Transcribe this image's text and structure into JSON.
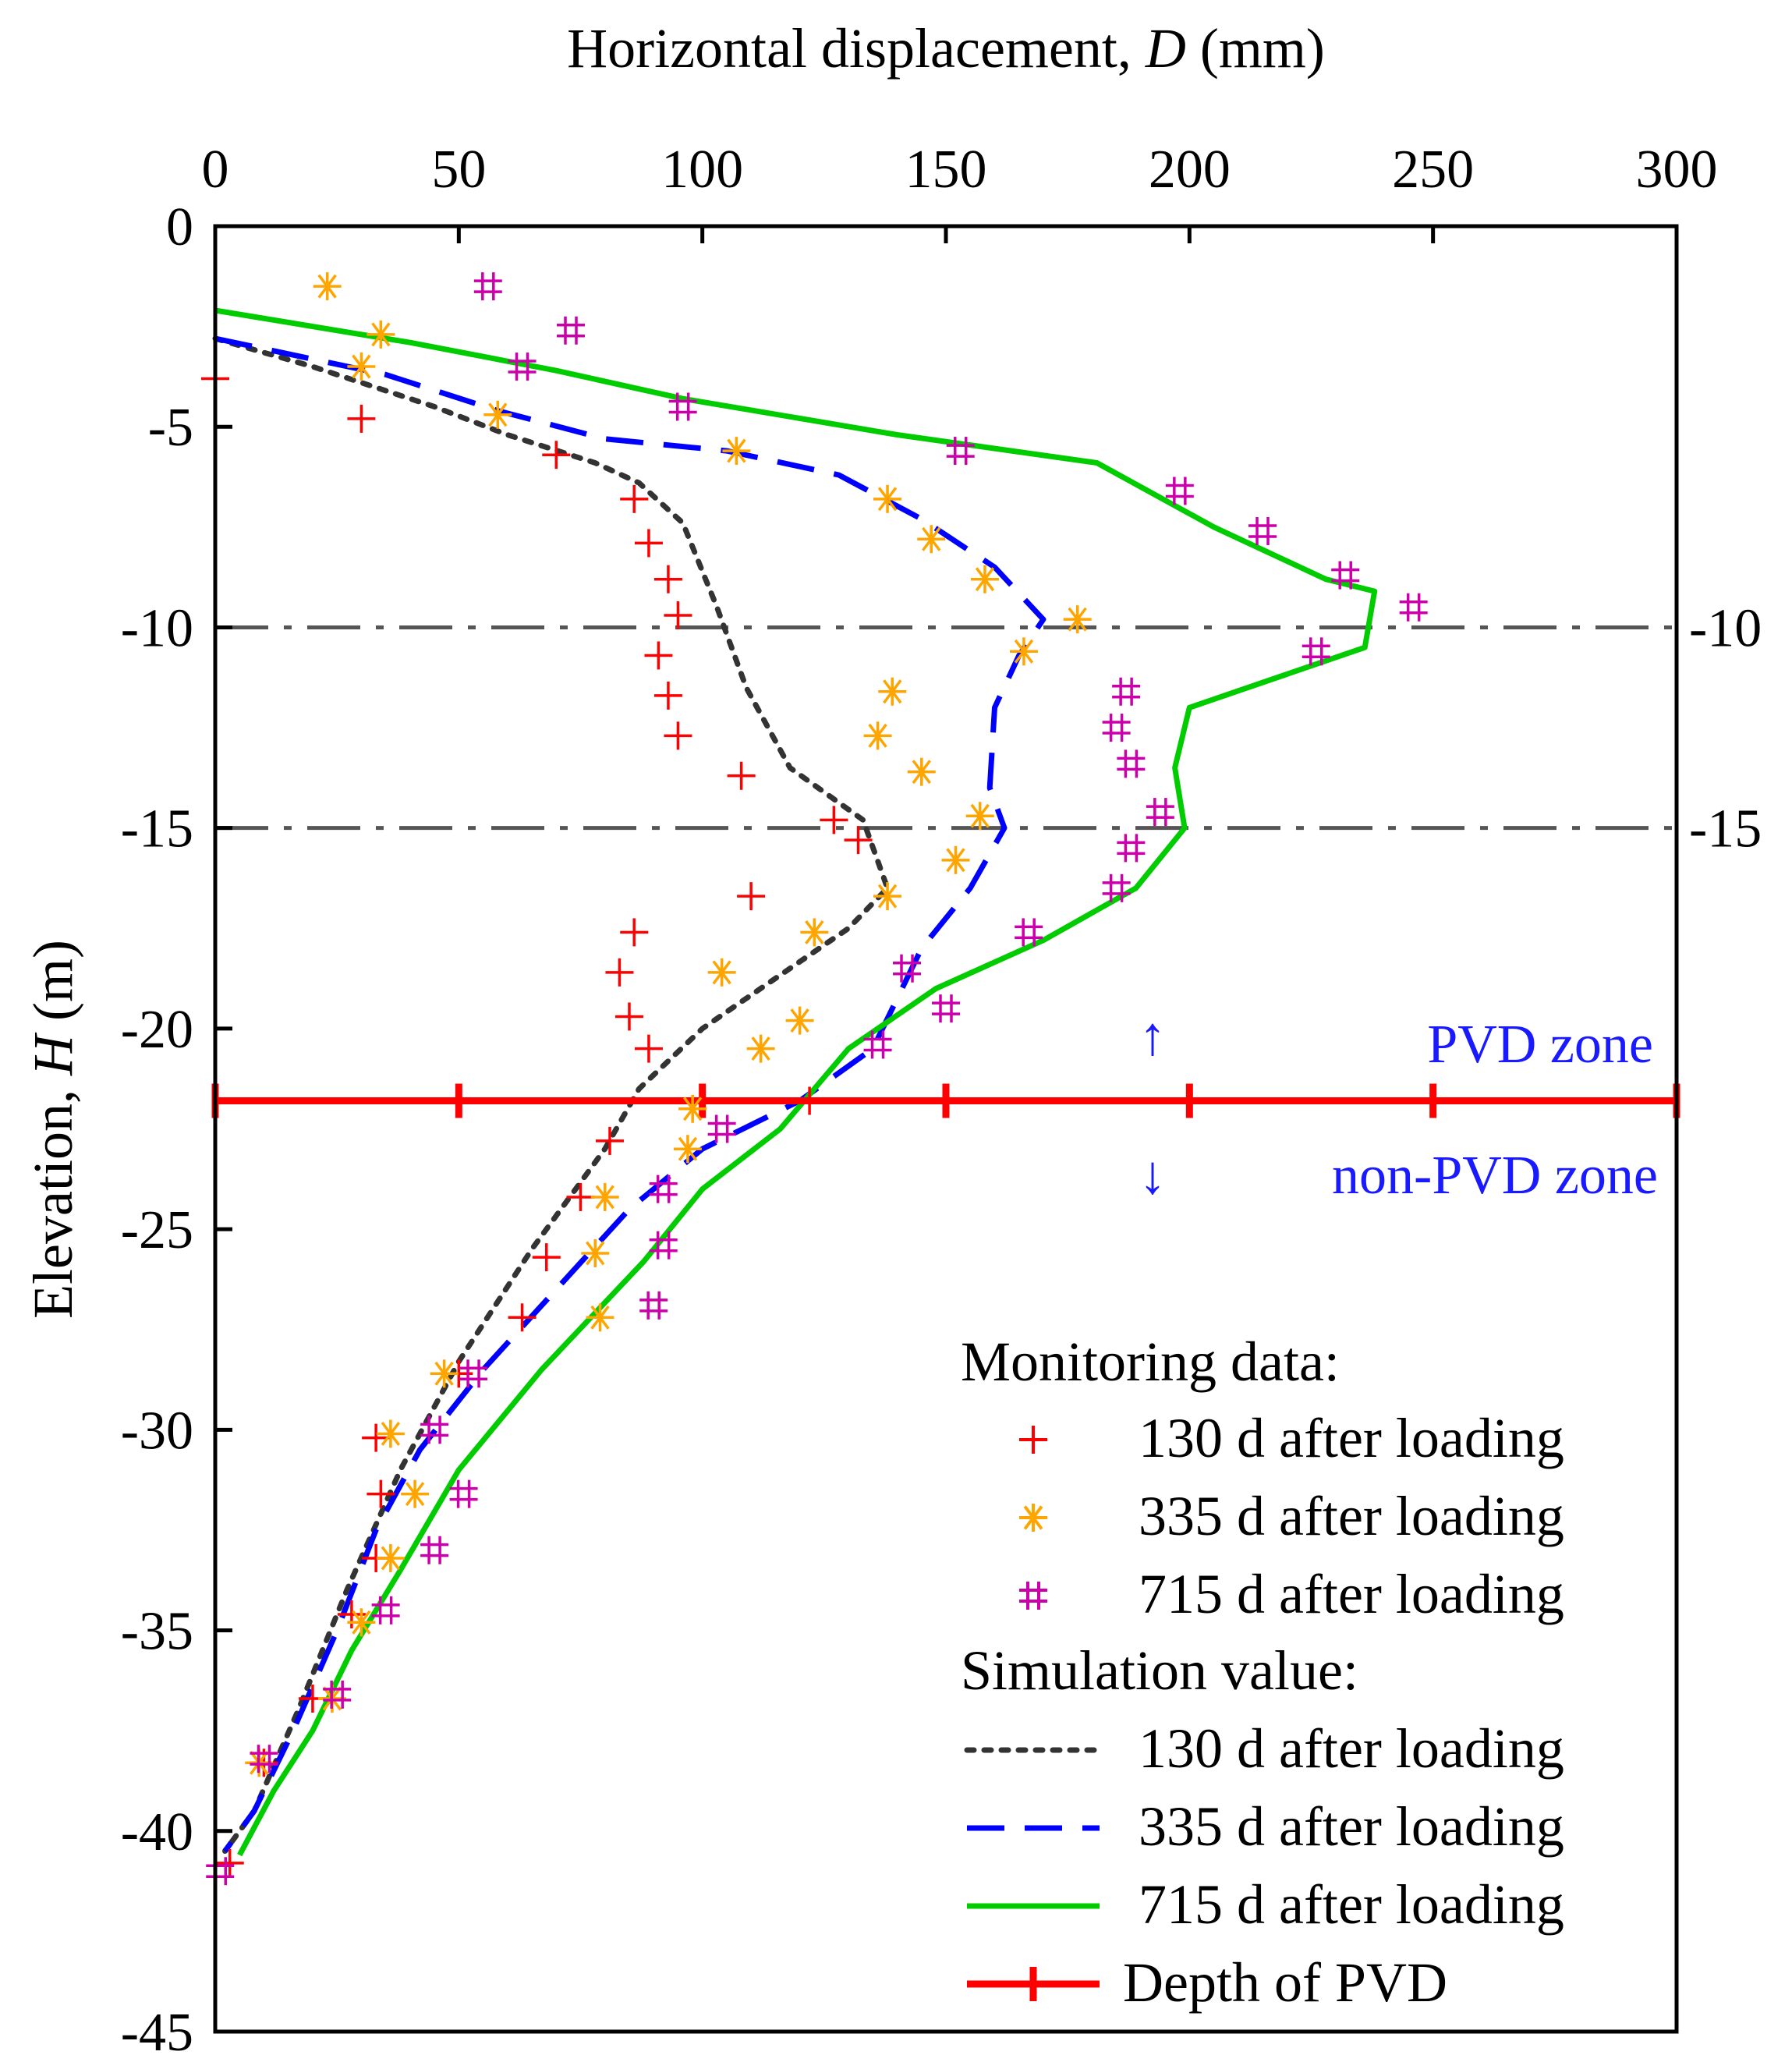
{
  "chart_data": {
    "type": "line",
    "title": "",
    "xlabel": "Horizontal displacement, D (mm)",
    "xlabel_parts": [
      "Horizontal displacement, ",
      "D",
      " (mm)"
    ],
    "ylabel": "Elevation, H (m)",
    "ylabel_parts": [
      "Elevation, ",
      "H",
      " (m)"
    ],
    "xlim": [
      0,
      300
    ],
    "ylim": [
      -45,
      0
    ],
    "x_axis_position": "top",
    "xticks": [
      0,
      50,
      100,
      150,
      200,
      250,
      300
    ],
    "xtick_labels": [
      "0",
      "50",
      "100",
      "150",
      "200",
      "250",
      "300"
    ],
    "yticks": [
      0,
      -5,
      -10,
      -15,
      -20,
      -25,
      -30,
      -35,
      -40,
      -45
    ],
    "ytick_labels": [
      "0",
      "-5",
      "-10",
      "-15",
      "-20",
      "-25",
      "-30",
      "-35",
      "-40",
      "-45"
    ],
    "reference_lines": [
      {
        "y": -10,
        "label": "-10",
        "style": "dash-dot",
        "color": "#555555"
      },
      {
        "y": -15,
        "label": "-15",
        "style": "dash-dot",
        "color": "#555555"
      }
    ],
    "pvd_depth": {
      "y": -21.8,
      "marker_x": [
        0,
        50,
        100,
        150,
        200,
        250,
        300
      ],
      "color": "#ff0000"
    },
    "zone_labels": {
      "upper": "PVD zone",
      "lower": "non-PVD zone",
      "upper_arrow": "↑",
      "lower_arrow": "↓"
    },
    "monitoring": [
      {
        "name": "130 d after loading",
        "marker": "+",
        "color": "#ff0000",
        "points": [
          [
            0,
            -3.8
          ],
          [
            30,
            -4.8
          ],
          [
            70,
            -5.7
          ],
          [
            86,
            -6.8
          ],
          [
            89,
            -7.9
          ],
          [
            93,
            -8.8
          ],
          [
            95,
            -9.7
          ],
          [
            91,
            -10.7
          ],
          [
            93,
            -11.7
          ],
          [
            95,
            -12.7
          ],
          [
            108,
            -13.7
          ],
          [
            127,
            -14.8
          ],
          [
            132,
            -15.3
          ],
          [
            110,
            -16.7
          ],
          [
            86,
            -17.6
          ],
          [
            83,
            -18.6
          ],
          [
            85,
            -19.7
          ],
          [
            89,
            -20.5
          ],
          [
            122,
            -21.8
          ],
          [
            81,
            -22.8
          ],
          [
            75,
            -24.2
          ],
          [
            68,
            -25.7
          ],
          [
            63,
            -27.2
          ],
          [
            50,
            -28.6
          ],
          [
            33,
            -30.2
          ],
          [
            34,
            -31.6
          ],
          [
            33,
            -33.2
          ],
          [
            28,
            -34.6
          ],
          [
            20,
            -36.7
          ],
          [
            10,
            -38.3
          ],
          [
            3,
            -40.8
          ]
        ]
      },
      {
        "name": "335 d after loading",
        "marker": "*",
        "color": "#ffa500",
        "points": [
          [
            23,
            -1.5
          ],
          [
            34,
            -2.7
          ],
          [
            30,
            -3.5
          ],
          [
            58,
            -4.7
          ],
          [
            107,
            -5.6
          ],
          [
            138,
            -6.8
          ],
          [
            147,
            -7.8
          ],
          [
            158,
            -8.8
          ],
          [
            177,
            -9.8
          ],
          [
            166,
            -10.6
          ],
          [
            139,
            -11.6
          ],
          [
            136,
            -12.7
          ],
          [
            145,
            -13.6
          ],
          [
            157,
            -14.7
          ],
          [
            152,
            -15.8
          ],
          [
            138,
            -16.7
          ],
          [
            123,
            -17.6
          ],
          [
            104,
            -18.6
          ],
          [
            120,
            -19.8
          ],
          [
            112,
            -20.5
          ],
          [
            98,
            -22
          ],
          [
            97,
            -23
          ],
          [
            80,
            -24.2
          ],
          [
            78,
            -25.6
          ],
          [
            79,
            -27.2
          ],
          [
            47,
            -28.6
          ],
          [
            36,
            -30.1
          ],
          [
            41,
            -31.6
          ],
          [
            36,
            -33.2
          ],
          [
            30,
            -34.8
          ],
          [
            24,
            -36.7
          ],
          [
            9,
            -38.3
          ]
        ]
      },
      {
        "name": "715 d after loading",
        "marker": "#",
        "color": "#cc00aa",
        "points": [
          [
            56,
            -1.5
          ],
          [
            73,
            -2.6
          ],
          [
            63,
            -3.5
          ],
          [
            96,
            -4.5
          ],
          [
            153,
            -5.6
          ],
          [
            198,
            -6.6
          ],
          [
            215,
            -7.6
          ],
          [
            232,
            -8.7
          ],
          [
            246,
            -9.5
          ],
          [
            226,
            -10.6
          ],
          [
            187,
            -11.6
          ],
          [
            185,
            -12.5
          ],
          [
            188,
            -13.4
          ],
          [
            194,
            -14.6
          ],
          [
            188,
            -15.5
          ],
          [
            185,
            -16.5
          ],
          [
            167,
            -17.6
          ],
          [
            142,
            -18.5
          ],
          [
            150,
            -19.5
          ],
          [
            136,
            -20.4
          ],
          [
            104,
            -22.5
          ],
          [
            92,
            -24
          ],
          [
            92,
            -25.4
          ],
          [
            90,
            -26.9
          ],
          [
            53,
            -28.6
          ],
          [
            45,
            -30
          ],
          [
            51,
            -31.6
          ],
          [
            45,
            -33
          ],
          [
            35,
            -34.5
          ],
          [
            25,
            -36.6
          ],
          [
            10,
            -38.2
          ],
          [
            1,
            -41
          ]
        ]
      }
    ],
    "simulation": [
      {
        "name": "130 d after loading",
        "style": "dotted",
        "color": "#333333",
        "points": [
          [
            0,
            -2.8
          ],
          [
            20,
            -3.5
          ],
          [
            45,
            -4.5
          ],
          [
            60,
            -5.2
          ],
          [
            78,
            -5.9
          ],
          [
            87,
            -6.4
          ],
          [
            96,
            -7.4
          ],
          [
            103,
            -9.5
          ],
          [
            109,
            -11.5
          ],
          [
            118,
            -13.5
          ],
          [
            133,
            -14.8
          ],
          [
            138,
            -16.5
          ],
          [
            130,
            -17.5
          ],
          [
            112,
            -19.0
          ],
          [
            100,
            -20.0
          ],
          [
            87,
            -21.5
          ],
          [
            80,
            -23.0
          ],
          [
            65,
            -25.5
          ],
          [
            50,
            -28.3
          ],
          [
            38,
            -31.0
          ],
          [
            27,
            -34.0
          ],
          [
            17,
            -37.0
          ],
          [
            8,
            -39.5
          ],
          [
            2,
            -40.5
          ]
        ]
      },
      {
        "name": "335 d after loading",
        "style": "dashed",
        "color": "#0000ff",
        "points": [
          [
            0,
            -2.8
          ],
          [
            35,
            -3.7
          ],
          [
            58,
            -4.6
          ],
          [
            80,
            -5.3
          ],
          [
            105,
            -5.6
          ],
          [
            128,
            -6.2
          ],
          [
            145,
            -7.3
          ],
          [
            160,
            -8.5
          ],
          [
            170,
            -9.8
          ],
          [
            165,
            -10.7
          ],
          [
            160,
            -12.0
          ],
          [
            159,
            -14.0
          ],
          [
            162,
            -15.0
          ],
          [
            155,
            -16.5
          ],
          [
            145,
            -18.0
          ],
          [
            135,
            -20.5
          ],
          [
            120,
            -21.8
          ],
          [
            100,
            -23.0
          ],
          [
            85,
            -24.5
          ],
          [
            70,
            -26.5
          ],
          [
            55,
            -28.5
          ],
          [
            42,
            -30.5
          ],
          [
            33,
            -32.5
          ],
          [
            25,
            -35.0
          ],
          [
            16,
            -37.5
          ],
          [
            8,
            -39.5
          ],
          [
            2,
            -40.5
          ]
        ]
      },
      {
        "name": "715 d after loading",
        "style": "solid",
        "color": "#00cc00",
        "points": [
          [
            0,
            -2.1
          ],
          [
            40,
            -2.9
          ],
          [
            70,
            -3.6
          ],
          [
            96,
            -4.3
          ],
          [
            140,
            -5.2
          ],
          [
            181,
            -5.9
          ],
          [
            205,
            -7.5
          ],
          [
            228,
            -8.8
          ],
          [
            238,
            -9.1
          ],
          [
            236,
            -10.5
          ],
          [
            200,
            -12.0
          ],
          [
            197,
            -13.5
          ],
          [
            199,
            -15.0
          ],
          [
            189,
            -16.5
          ],
          [
            170,
            -17.8
          ],
          [
            148,
            -19.0
          ],
          [
            130,
            -20.5
          ],
          [
            116,
            -22.5
          ],
          [
            100,
            -24.0
          ],
          [
            88,
            -25.8
          ],
          [
            67,
            -28.5
          ],
          [
            50,
            -31.0
          ],
          [
            38,
            -33.5
          ],
          [
            28,
            -35.5
          ],
          [
            20,
            -37.5
          ],
          [
            12,
            -39.0
          ],
          [
            5,
            -40.6
          ]
        ]
      }
    ],
    "legend": {
      "position": "bottom-right",
      "monitoring_heading": "Monitoring data:",
      "simulation_heading": "Simulation value:",
      "monitoring_items": [
        "130 d after loading",
        "335 d after loading",
        "715 d after loading"
      ],
      "simulation_items": [
        "130 d after loading",
        "335 d after loading",
        "715 d after loading"
      ],
      "pvd_item": "Depth of PVD"
    }
  }
}
